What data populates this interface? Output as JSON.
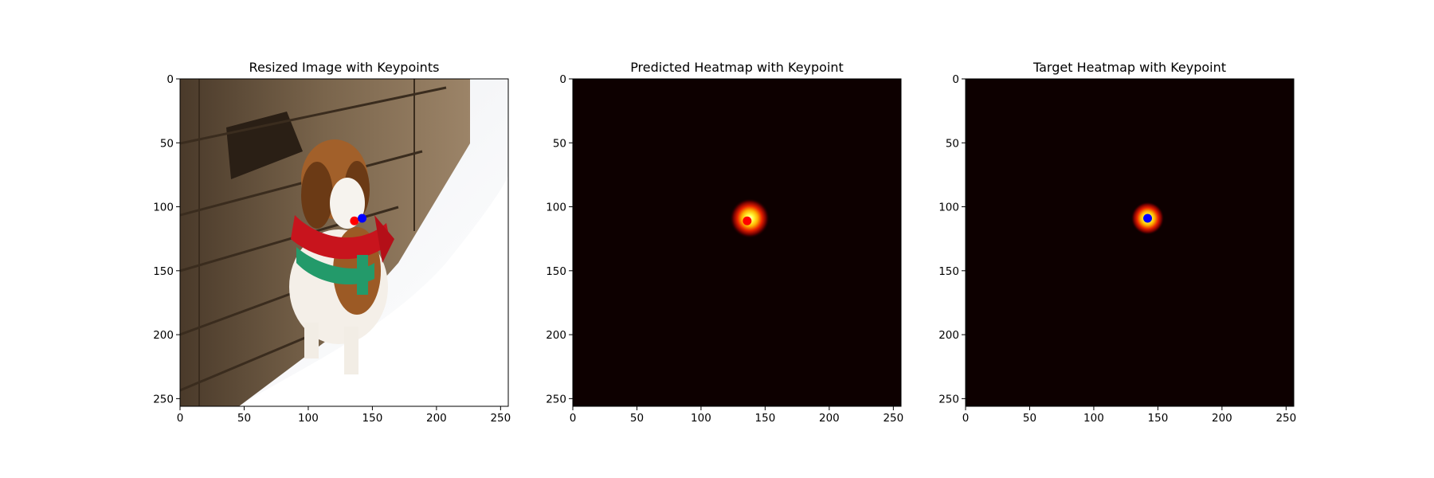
{
  "colors": {
    "red_keypoint": "#ff0000",
    "blue_keypoint": "#0000ff",
    "heatmap_background": "#0d0000",
    "heatmap_peak": "#ffffe0",
    "axes_frame": "#000000"
  },
  "chart_data": [
    {
      "type": "image",
      "title": "Resized Image with Keypoints",
      "image": "beagle dog wearing a red bandana and green harness standing in snow beside a wooden fence",
      "xlim": [
        0,
        256
      ],
      "ylim": [
        256,
        0
      ],
      "xticks": [
        0,
        50,
        100,
        150,
        200,
        250
      ],
      "yticks": [
        0,
        50,
        100,
        150,
        200,
        250
      ],
      "keypoints": [
        {
          "x": 136,
          "y": 111,
          "color": "red"
        },
        {
          "x": 142,
          "y": 109,
          "color": "blue"
        }
      ]
    },
    {
      "type": "heatmap",
      "title": "Predicted Heatmap with Keypoint",
      "colormap": "hot",
      "xlim": [
        0,
        256
      ],
      "ylim": [
        256,
        0
      ],
      "xticks": [
        0,
        50,
        100,
        150,
        200,
        250
      ],
      "yticks": [
        0,
        50,
        100,
        150,
        200,
        250
      ],
      "peak": {
        "x": 138,
        "y": 109,
        "sigma": 6
      },
      "keypoints": [
        {
          "x": 136,
          "y": 111,
          "color": "red"
        }
      ]
    },
    {
      "type": "heatmap",
      "title": "Target Heatmap with Keypoint",
      "colormap": "hot",
      "xlim": [
        0,
        256
      ],
      "ylim": [
        256,
        0
      ],
      "xticks": [
        0,
        50,
        100,
        150,
        200,
        250
      ],
      "yticks": [
        0,
        50,
        100,
        150,
        200,
        250
      ],
      "peak": {
        "x": 142,
        "y": 109,
        "sigma": 5
      },
      "keypoints": [
        {
          "x": 142,
          "y": 109,
          "color": "blue"
        }
      ]
    }
  ]
}
